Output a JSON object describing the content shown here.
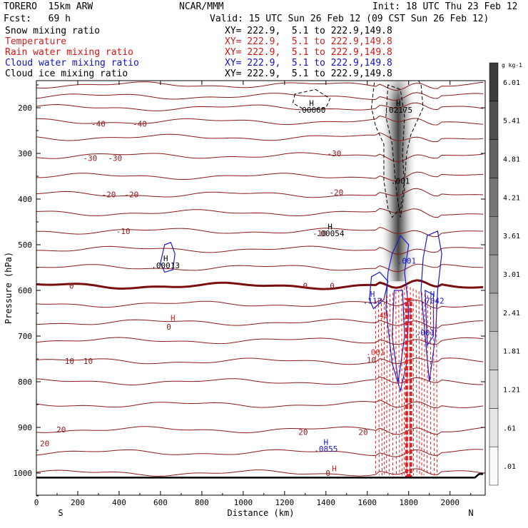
{
  "header": {
    "model": "TORERO  15km ARW",
    "org": "NCAR/MMM",
    "init": "Init: 18 UTC Thu 23 Feb 12",
    "fcst": "Fcst:   69 h",
    "valid": "Valid: 15 UTC Sun 26 Feb 12 (09 CST Sun 26 Feb 12)"
  },
  "legend": [
    {
      "label": "Snow mixing ratio",
      "xy": "XY= 222.9,  5.1 to 222.9,149.8",
      "color": "#000000"
    },
    {
      "label": "Temperature",
      "xy": "XY= 222.9,  5.1 to 222.9,149.8",
      "color": "#cc2222"
    },
    {
      "label": "Rain water mixing ratio",
      "xy": "XY= 222.9,  5.1 to 222.9,149.8",
      "color": "#dd1111"
    },
    {
      "label": "Cloud water mixing ratio",
      "xy": "XY= 222.9,  5.1 to 222.9,149.8",
      "color": "#1111cc"
    },
    {
      "label": "Cloud ice mixing ratio",
      "xy": "XY= 222.9,  5.1 to 222.9,149.8",
      "color": "#000000"
    }
  ],
  "colors": {
    "temperature": "#8b1a1a",
    "freezing": "#7a0f0f",
    "rain": "#e02020",
    "cloud_water": "#1a1acc",
    "cloud_ice": "#000000",
    "ground": "#000000"
  },
  "chart_data": {
    "type": "cross-section",
    "xlabel": "Distance (km)",
    "ylabel": "Pressure (hPa)",
    "x_ticks": [
      0,
      200,
      400,
      600,
      800,
      1000,
      1200,
      1400,
      1600,
      1800,
      2000
    ],
    "y_ticks": [
      200,
      300,
      400,
      500,
      600,
      700,
      800,
      900,
      1000
    ],
    "xlim": [
      0,
      2170
    ],
    "ylim": [
      1050,
      120
    ],
    "left_end": "S",
    "right_end": "N",
    "temperature_labels": [
      {
        "text": "-40",
        "x": 300,
        "p": 235
      },
      {
        "text": "-40",
        "x": 500,
        "p": 235
      },
      {
        "text": "-30",
        "x": 260,
        "p": 310
      },
      {
        "text": "-30",
        "x": 380,
        "p": 310
      },
      {
        "text": "-30",
        "x": 1440,
        "p": 300
      },
      {
        "text": "-20",
        "x": 350,
        "p": 390
      },
      {
        "text": "-20",
        "x": 460,
        "p": 390
      },
      {
        "text": "-20",
        "x": 1450,
        "p": 385
      },
      {
        "text": "-10",
        "x": 420,
        "p": 470
      },
      {
        "text": "-10",
        "x": 1370,
        "p": 475
      },
      {
        "text": "0",
        "x": 170,
        "p": 590
      },
      {
        "text": "0",
        "x": 1300,
        "p": 590
      },
      {
        "text": "0",
        "x": 1430,
        "p": 590
      },
      {
        "text": "0",
        "x": 640,
        "p": 680
      },
      {
        "text": "10",
        "x": 160,
        "p": 755
      },
      {
        "text": "10",
        "x": 250,
        "p": 755
      },
      {
        "text": "10",
        "x": 1620,
        "p": 752
      },
      {
        "text": "20",
        "x": 120,
        "p": 905
      },
      {
        "text": "20",
        "x": 1290,
        "p": 910
      },
      {
        "text": "20",
        "x": 1580,
        "p": 910
      },
      {
        "text": "20",
        "x": 40,
        "p": 935
      },
      {
        "text": "0",
        "x": 1410,
        "p": 1000
      }
    ],
    "highs": [
      {
        "text": "H",
        "x": 1330,
        "p": 190,
        "color": "#000000"
      },
      {
        "text": ".00060",
        "x": 1330,
        "p": 205,
        "color": "#000000"
      },
      {
        "text": "H",
        "x": 1750,
        "p": 190,
        "color": "#000000"
      },
      {
        "text": ".02175",
        "x": 1750,
        "p": 205,
        "color": "#000000"
      },
      {
        "text": ".001",
        "x": 1760,
        "p": 360,
        "color": "#000000"
      },
      {
        "text": "H",
        "x": 1420,
        "p": 460,
        "color": "#000000"
      },
      {
        "text": ".00054",
        "x": 1420,
        "p": 475,
        "color": "#000000"
      },
      {
        "text": "H",
        "x": 625,
        "p": 530,
        "color": "#000000"
      },
      {
        "text": ".00013",
        "x": 625,
        "p": 545,
        "color": "#000000"
      },
      {
        "text": ".001",
        "x": 1790,
        "p": 535,
        "color": "#1a1acc"
      },
      {
        "text": "H",
        "x": 1625,
        "p": 608,
        "color": "#1a1acc"
      },
      {
        "text": ".112",
        "x": 1625,
        "p": 623,
        "color": "#1a1acc"
      },
      {
        "text": "H",
        "x": 1915,
        "p": 608,
        "color": "#1a1acc"
      },
      {
        "text": ".7042",
        "x": 1915,
        "p": 623,
        "color": "#1a1acc"
      },
      {
        "text": ".001",
        "x": 1880,
        "p": 692,
        "color": "#1a1acc"
      },
      {
        "text": "H",
        "x": 660,
        "p": 660,
        "color": "#e02020"
      },
      {
        "text": ".001",
        "x": 1640,
        "p": 735,
        "color": "#e02020"
      },
      {
        "text": "40",
        "x": 1680,
        "p": 655,
        "color": "#e02020"
      },
      {
        "text": "H",
        "x": 1400,
        "p": 932,
        "color": "#1a1acc"
      },
      {
        "text": ".0855",
        "x": 1400,
        "p": 947,
        "color": "#1a1acc"
      },
      {
        "text": "H",
        "x": 1440,
        "p": 990,
        "color": "#e02020"
      }
    ],
    "temperature_levels_hPa": [
      130,
      150,
      175,
      200,
      230,
      265,
      305,
      350,
      390,
      430,
      470,
      510,
      550,
      590,
      630,
      670,
      710,
      755,
      800,
      850,
      905,
      955,
      1000
    ],
    "ground_pressure_hPa": 1010,
    "colorbar": {
      "unit": "g kg-1",
      "labels": [
        ".01",
        ".61",
        "1.21",
        "1.81",
        "2.41",
        "3.01",
        "3.61",
        "4.21",
        "4.81",
        "5.41",
        "6.01"
      ]
    }
  }
}
